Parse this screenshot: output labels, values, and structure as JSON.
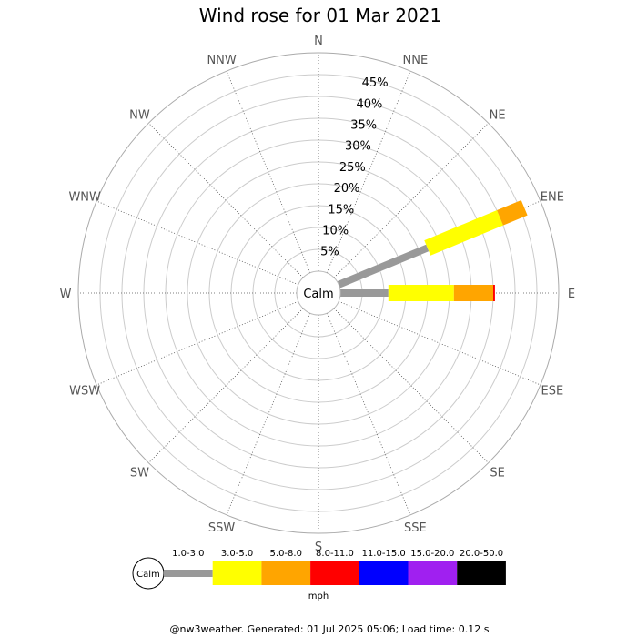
{
  "chart_data": {
    "type": "wind-rose",
    "title": "Wind rose for 01 Mar 2021",
    "directions": [
      "N",
      "NNE",
      "NE",
      "ENE",
      "E",
      "ESE",
      "SE",
      "SSE",
      "S",
      "SSW",
      "SW",
      "WSW",
      "W",
      "WNW",
      "NW",
      "NNW"
    ],
    "radial_ticks": [
      "5%",
      "10%",
      "15%",
      "20%",
      "25%",
      "30%",
      "35%",
      "40%",
      "45%"
    ],
    "radial_max": 50,
    "calm_label": "Calm",
    "speed_bins": [
      "1.0-3.0",
      "3.0-5.0",
      "5.0-8.0",
      "8.0-11.0",
      "11.0-15.0",
      "15.0-20.0",
      "20.0-50.0"
    ],
    "unit": "mph",
    "colors": [
      "#999999",
      "#ffff00",
      "#ffa500",
      "#ff0000",
      "#0000ff",
      "#a020f0",
      "#000000"
    ],
    "series": [
      {
        "direction": "ENE",
        "values": [
          22,
          18,
          6,
          0,
          0,
          0,
          0
        ]
      },
      {
        "direction": "E",
        "values": [
          11,
          15,
          9,
          0.4,
          0,
          0,
          0
        ]
      }
    ],
    "footer": "@nw3weather. Generated: 01 Jul 2025 05:06; Load time: 0.12 s"
  }
}
